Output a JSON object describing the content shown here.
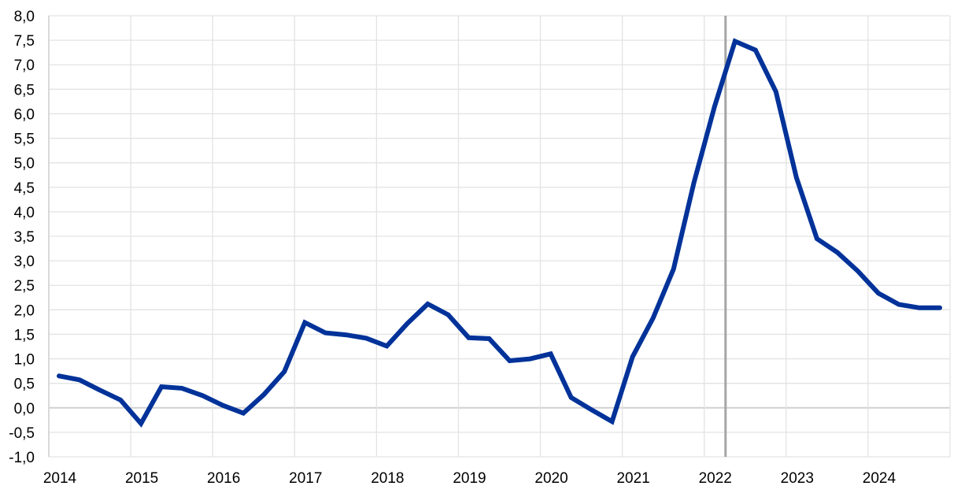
{
  "chart_data": {
    "type": "line",
    "title": "",
    "xlabel": "",
    "ylabel": "",
    "ylim": [
      -1.0,
      8.0
    ],
    "ytick_step": 0.5,
    "yticks": [
      "-1,0",
      "-0,5",
      "0,0",
      "0,5",
      "1,0",
      "1,5",
      "2,0",
      "2,5",
      "3,0",
      "3,5",
      "4,0",
      "4,5",
      "5,0",
      "5,5",
      "6,0",
      "6,5",
      "7,0",
      "7,5",
      "8,0"
    ],
    "xticks": [
      "2014",
      "2015",
      "2016",
      "2017",
      "2018",
      "2019",
      "2020",
      "2021",
      "2022",
      "2023",
      "2024"
    ],
    "grid": true,
    "frequency": "quarterly",
    "x_start": "2014 Q1",
    "series": [
      {
        "color": "#003299",
        "values": [
          0.65,
          0.57,
          0.36,
          0.16,
          -0.32,
          0.43,
          0.4,
          0.25,
          0.05,
          -0.11,
          0.27,
          0.74,
          1.74,
          1.53,
          1.49,
          1.42,
          1.26,
          1.72,
          2.12,
          1.9,
          1.43,
          1.41,
          0.96,
          1.0,
          1.1,
          0.21,
          -0.04,
          -0.28,
          1.04,
          1.83,
          2.83,
          4.6,
          6.14,
          7.48,
          7.3,
          6.45,
          4.7,
          3.45,
          3.17,
          2.79,
          2.34,
          2.11,
          2.04,
          2.04
        ]
      }
    ],
    "vertical_marker": {
      "x": "2022 Q1/Q2",
      "color": "#a6a6a6"
    }
  }
}
